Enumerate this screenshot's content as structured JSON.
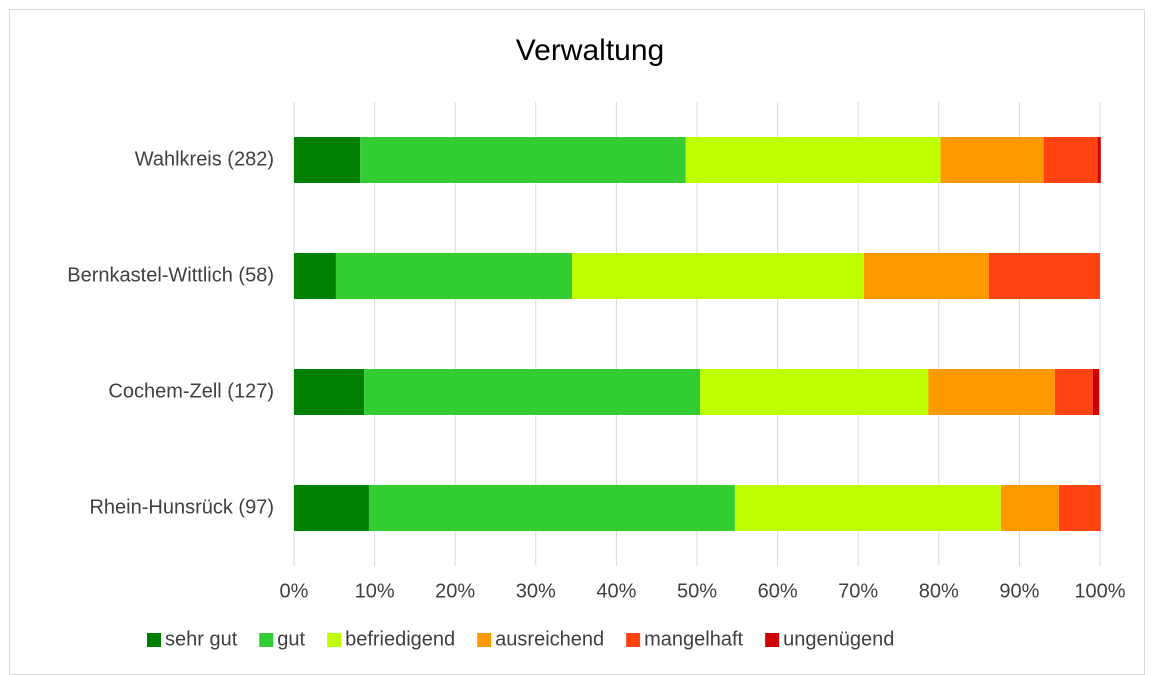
{
  "chart_data": {
    "type": "stacked_barh",
    "title": "Verwaltung",
    "categories": [
      "Wahlkreis (282)",
      "Bernkastel-Wittlich (58)",
      "Cochem-Zell (127)",
      "Rhein-Hunsrück (97)"
    ],
    "series": [
      {
        "name": "sehr gut",
        "color": "#008000",
        "values": [
          8.2,
          5.2,
          8.7,
          9.3
        ]
      },
      {
        "name": "gut",
        "color": "#33cc33",
        "values": [
          40.4,
          29.3,
          41.7,
          45.4
        ]
      },
      {
        "name": "befriedigend",
        "color": "#bfff00",
        "values": [
          31.6,
          36.2,
          28.3,
          33.0
        ]
      },
      {
        "name": "ausreichend",
        "color": "#ff9900",
        "values": [
          12.8,
          15.5,
          15.7,
          7.2
        ]
      },
      {
        "name": "mangelhaft",
        "color": "#ff4411",
        "values": [
          6.7,
          13.8,
          4.7,
          5.2
        ]
      },
      {
        "name": "ungenügend",
        "color": "#cc0000",
        "values": [
          0.4,
          0,
          0.8,
          0
        ]
      }
    ],
    "xlim": [
      0,
      100
    ],
    "xticks": [
      {
        "value": 0,
        "label": "0%"
      },
      {
        "value": 10,
        "label": "10%"
      },
      {
        "value": 20,
        "label": "20%"
      },
      {
        "value": 30,
        "label": "30%"
      },
      {
        "value": 40,
        "label": "40%"
      },
      {
        "value": 50,
        "label": "50%"
      },
      {
        "value": 60,
        "label": "60%"
      },
      {
        "value": 70,
        "label": "70%"
      },
      {
        "value": 80,
        "label": "80%"
      },
      {
        "value": 90,
        "label": "90%"
      },
      {
        "value": 100,
        "label": "100%"
      }
    ],
    "grid": true,
    "legend": "bottom"
  }
}
